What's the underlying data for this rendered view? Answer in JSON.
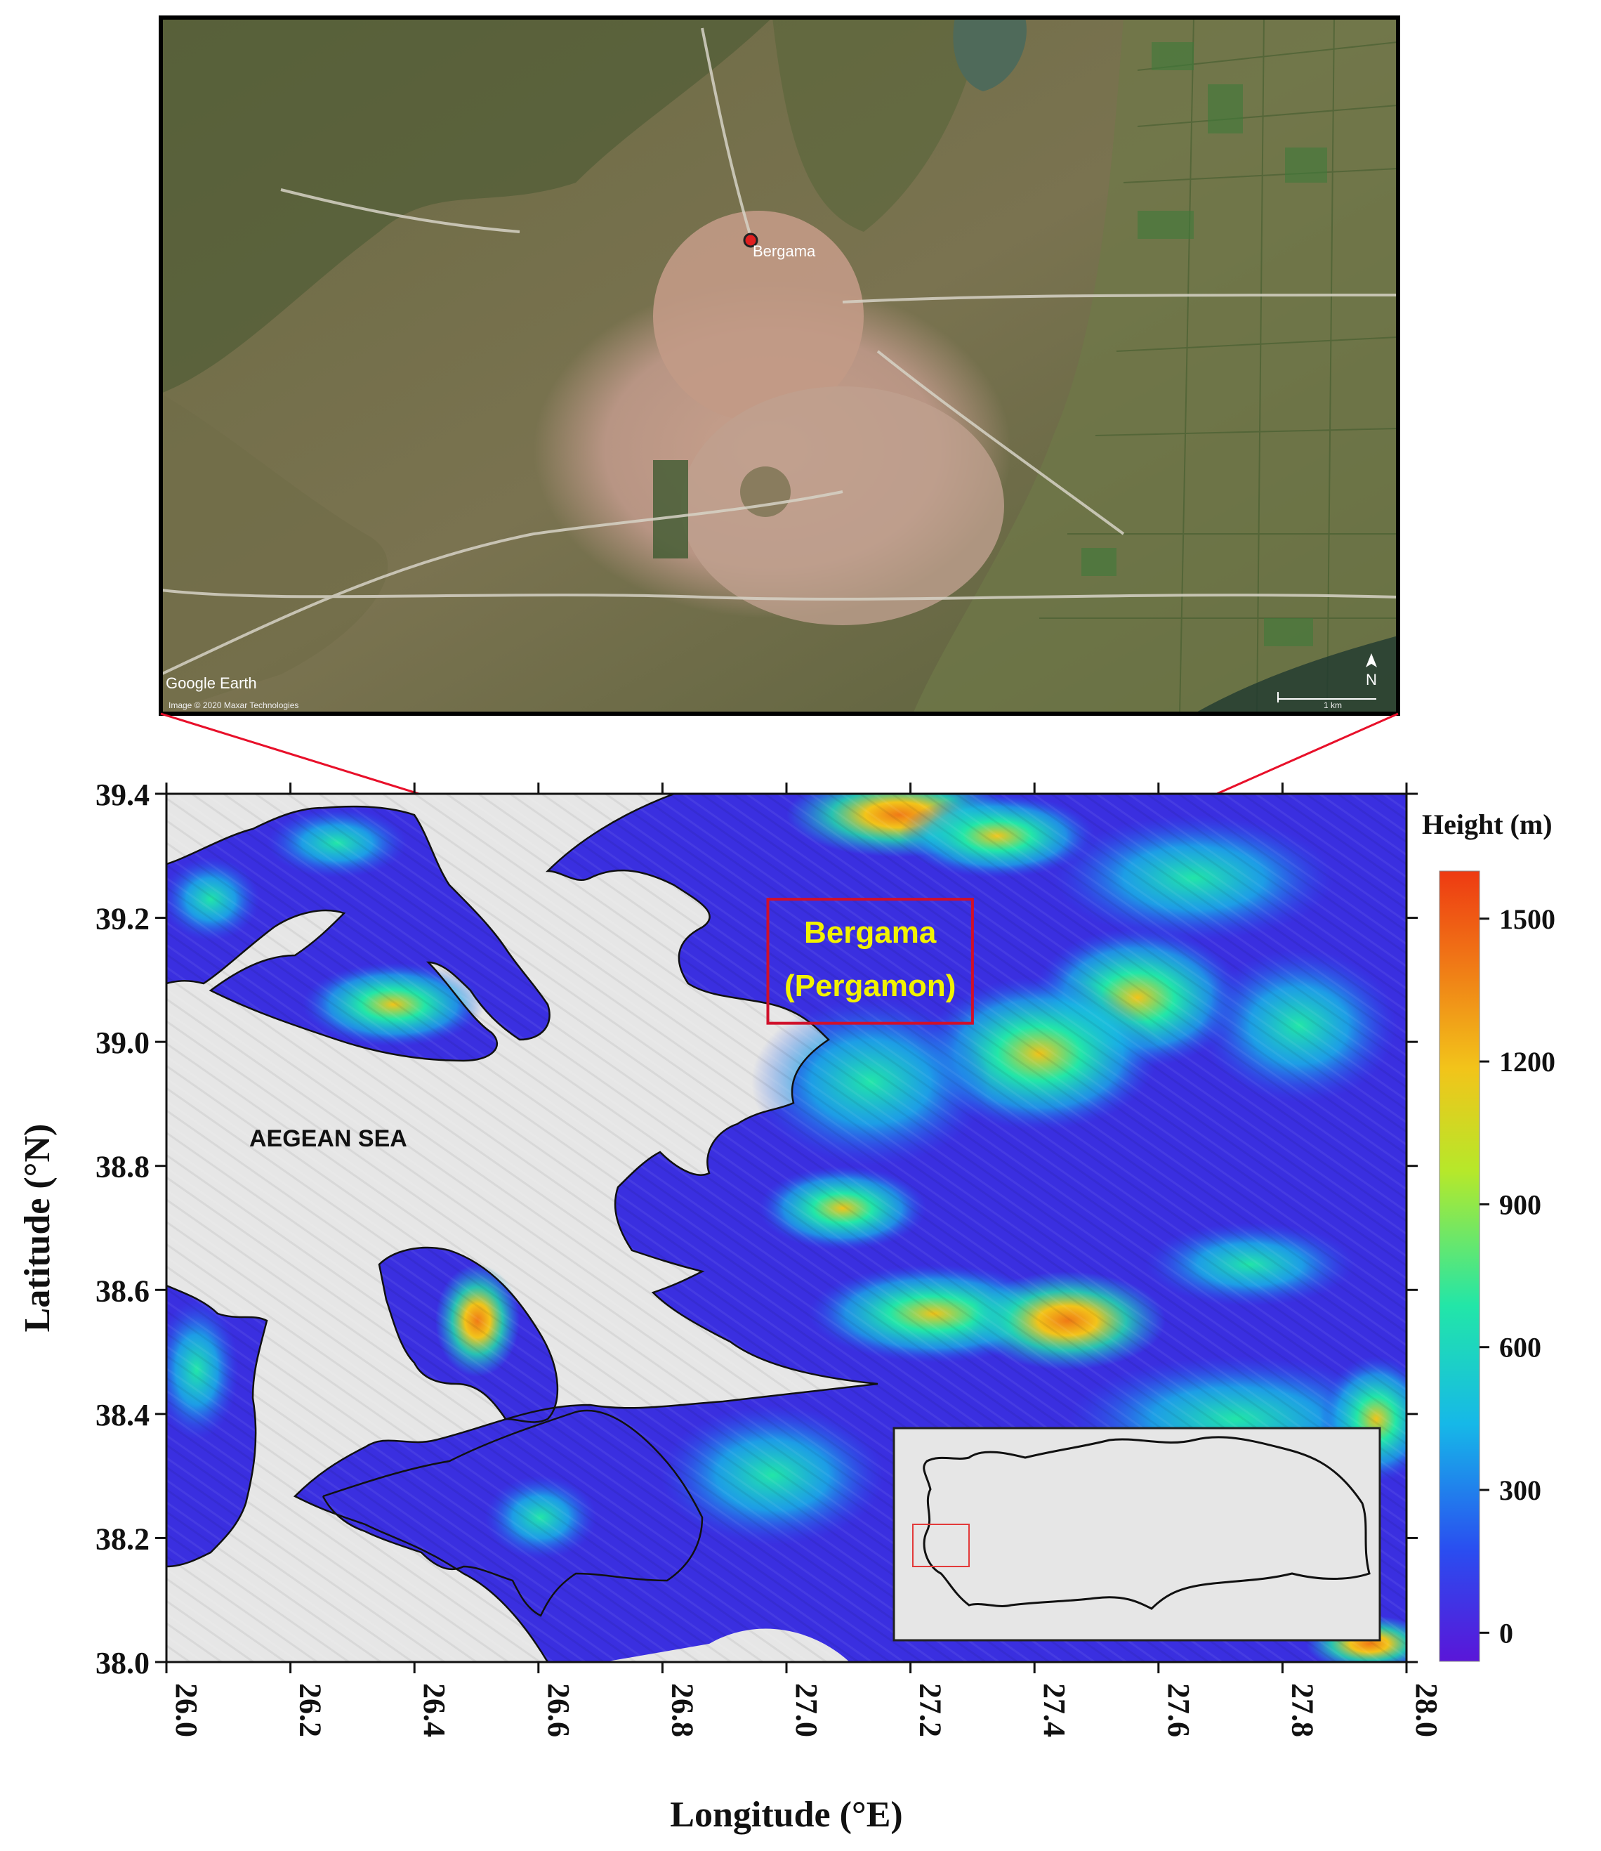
{
  "satellite": {
    "place_label": "Bergama",
    "watermark": "Google Earth",
    "copyright": "Image © 2020 Maxar Technologies",
    "scale_label": "1 km",
    "north_label": "N"
  },
  "map": {
    "region_label_line1": "Bergama",
    "region_label_line2": "(Pergamon)",
    "sea_label": "AEGEAN SEA",
    "xlabel": "Longitude (°E)",
    "ylabel": "Latitude (°N)",
    "xlim": [
      26.0,
      28.0
    ],
    "ylim": [
      38.0,
      39.4
    ],
    "xticks": [
      "26.0",
      "26.2",
      "26.4",
      "26.6",
      "26.8",
      "27.0",
      "27.2",
      "27.4",
      "27.6",
      "27.8",
      "28.0"
    ],
    "yticks": [
      "39.4",
      "39.2",
      "39.0",
      "38.8",
      "38.6",
      "38.4",
      "38.2",
      "38.0"
    ],
    "study_box": {
      "lon_min": 26.97,
      "lon_max": 27.3,
      "lat_min": 39.03,
      "lat_max": 39.23
    },
    "colorbar": {
      "title": "Height (m)",
      "labels": [
        "1500",
        "1200",
        "900",
        "600",
        "300",
        "0"
      ],
      "range": [
        -60,
        1600
      ],
      "colors": [
        "#5a16d8",
        "#2a4df0",
        "#16b8e8",
        "#22e6a8",
        "#b6e82a",
        "#f2c41a",
        "#f07a16",
        "#ee3a12"
      ]
    },
    "inset": {
      "country_outline": "Turkey",
      "highlight_color": "#e23a3a"
    },
    "colors": {
      "water": "#e6e6e6",
      "lowland": "#3a2fe0",
      "highlight_box": "#d0102a",
      "connector": "#e8102a"
    }
  }
}
